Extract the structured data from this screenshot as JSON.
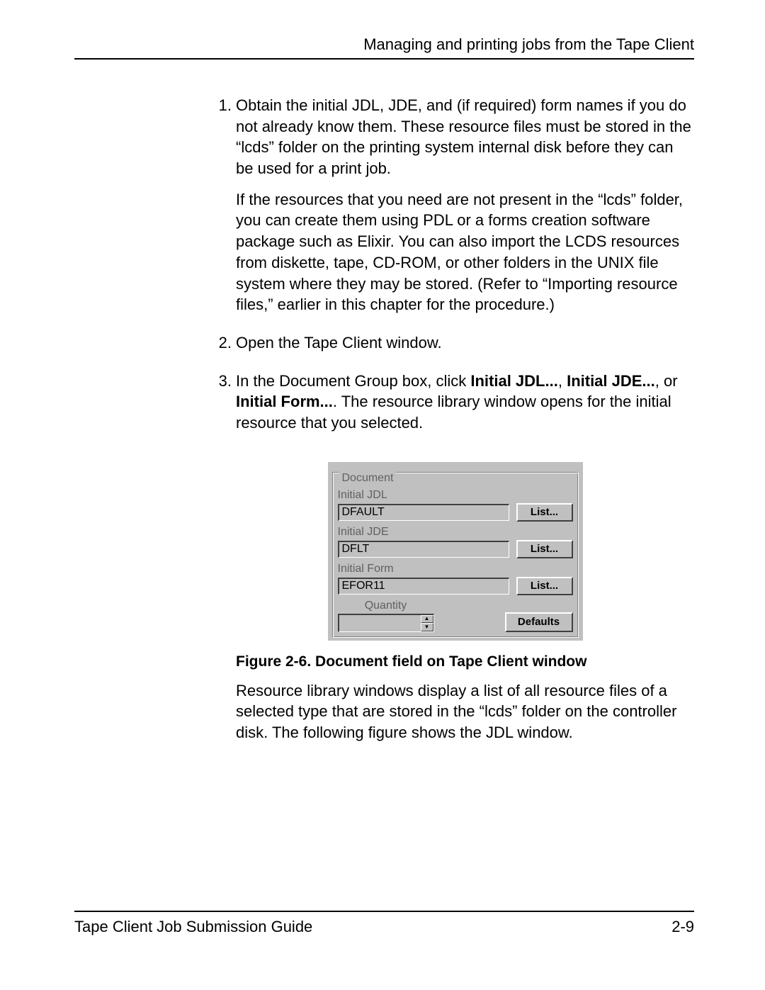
{
  "header": {
    "title": "Managing and printing jobs from the Tape Client"
  },
  "steps": {
    "s1": {
      "num": "1.",
      "p1": "Obtain the initial JDL, JDE, and (if required) form names if you do not already know them. These resource files must be stored in the “lcds” folder on the printing system internal disk before they can be used for a print job.",
      "p2": "If the resources that you need are not present in the “lcds” folder, you can create them using PDL or a forms creation software package such as Elixir. You can also import the LCDS resources from diskette, tape, CD-ROM, or other folders in the UNIX file system where they may be stored. (Refer to “Importing resource files,” earlier in this chapter for the procedure.)"
    },
    "s2": {
      "num": "2.",
      "p1": "Open the Tape Client window."
    },
    "s3": {
      "num": "3.",
      "pre": "In the Document Group box, click ",
      "b1": "Initial JDL...",
      "sep1": ", ",
      "b2": "Initial JDE...",
      "sep2": ", or ",
      "b3": "Initial Form...",
      "post": ". The resource library window opens for the initial resource that you selected."
    }
  },
  "panel": {
    "group_title": "Document",
    "jdl_label": "Initial JDL",
    "jdl_value": "DFAULT",
    "jde_label": "Initial JDE",
    "jde_value": "DFLT",
    "form_label": "Initial Form",
    "form_value": "EFOR11",
    "list_label": "List...",
    "qty_label": "Quantity",
    "defaults_label": "Defaults",
    "colors": {
      "bg": "#c0c0c0",
      "text_dim": "#606060"
    }
  },
  "figure": {
    "caption": "Figure 2-6. Document field on Tape Client window",
    "after": "Resource library windows display a list of all resource files of a selected type that are stored in the “lcds” folder on the controller disk. The following figure shows the JDL window."
  },
  "footer": {
    "left": "Tape Client Job Submission Guide",
    "right": "2-9"
  }
}
